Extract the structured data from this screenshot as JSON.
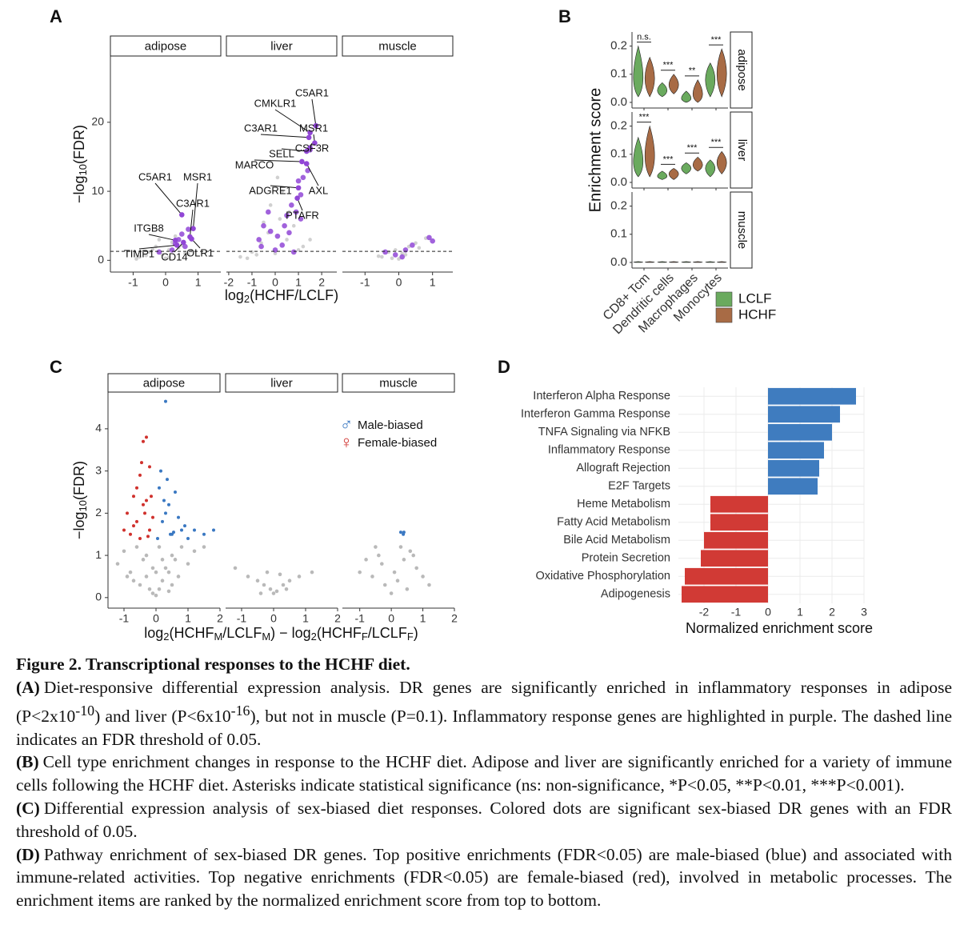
{
  "chart_data": [
    {
      "type": "scatter",
      "panel": "A",
      "xlabel": [
        "log",
        "2",
        "(HCHF/LCLF)"
      ],
      "ylabel": [
        "−log",
        "10",
        "(FDR)"
      ],
      "ylim": [
        -1.7,
        29.6
      ],
      "yticks": [
        0,
        10,
        20
      ],
      "threshold": 1.3,
      "background_color": "#c4c4c4",
      "highlight_color": "#9146d6",
      "facets": [
        {
          "name": "adipose",
          "xlim": [
            -1.7,
            1.7
          ],
          "xticks": [
            -1,
            0,
            1
          ],
          "background": {
            "x": [
              -0.8,
              -0.5,
              -0.3,
              -0.1,
              0,
              0.1,
              0.2,
              0.4,
              0.6,
              -0.6,
              -0.2,
              0.3,
              0.5,
              -0.4,
              0.1,
              0.8,
              -0.9,
              0.7
            ],
            "y": [
              0.5,
              1.2,
              2.0,
              0.8,
              0.3,
              1.5,
              2.6,
              1.8,
              1.0,
              0.7,
              3.0,
              3.5,
              2.2,
              1.6,
              0.4,
              1.4,
              0.2,
              0.9
            ]
          },
          "highlight": {
            "x": [
              0.2,
              0.4,
              0.6,
              0.7,
              0.5,
              -0.2,
              0.3
            ],
            "y": [
              1.5,
              3.0,
              2.0,
              4.5,
              3.8,
              1.2,
              2.4
            ]
          },
          "genes": {
            "labels": [
              "C5AR1",
              "MSR1",
              "C3AR1",
              "ITGB8",
              "TIMP1",
              "CD14",
              "OLR1"
            ],
            "x": [
              0.5,
              0.85,
              0.75,
              0.3,
              0.35,
              0.55,
              0.8
            ],
            "y": [
              6.6,
              4.6,
              3.4,
              2.9,
              2.2,
              2.6,
              3.1
            ]
          }
        },
        {
          "name": "liver",
          "xlim": [
            -2.1,
            2.65
          ],
          "xticks": [
            -2,
            -1,
            0,
            1,
            2
          ],
          "background": {
            "x": [
              -1.5,
              -1,
              -0.6,
              -0.3,
              0,
              0.2,
              0.5,
              0.8,
              1.2,
              -0.8,
              -0.2,
              0.3,
              0.6,
              1.0,
              -1.2,
              1.5,
              0.1,
              -0.5
            ],
            "y": [
              0.5,
              1.2,
              2.5,
              4,
              1,
              6,
              3,
              5,
              2,
              0.8,
              8,
              10,
              7,
              1.5,
              0.3,
              3,
              12,
              5.5
            ]
          },
          "highlight": {
            "x": [
              -0.7,
              -0.5,
              -0.3,
              -0.2,
              0,
              0.1,
              0.3,
              0.4,
              0.5,
              0.6,
              0.7,
              0.9,
              1.0,
              1.1,
              1.2,
              1.4,
              1.5,
              -0.6,
              0.8,
              1.1
            ],
            "y": [
              3,
              5,
              7,
              4.2,
              1.5,
              3.5,
              2.2,
              5,
              6.5,
              4,
              8,
              7,
              11.5,
              9.5,
              12,
              13,
              16,
              2,
              1.2,
              6
            ]
          },
          "genes": {
            "labels": [
              "C5AR1",
              "CMKLR1",
              "C3AR1",
              "MSR1",
              "SELL",
              "CSF3R",
              "MARCO",
              "ADGRE1",
              "AXL",
              "PTAFR"
            ],
            "x": [
              1.75,
              1.5,
              1.45,
              1.7,
              1.35,
              1.5,
              1.15,
              1.0,
              1.35,
              0.95
            ],
            "y": [
              19.5,
              18.5,
              17.8,
              17.0,
              15.8,
              16.3,
              14.3,
              10.5,
              14.0,
              9.0
            ]
          }
        },
        {
          "name": "muscle",
          "xlim": [
            -1.67,
            1.6
          ],
          "xticks": [
            -1,
            0,
            1
          ],
          "background": {
            "x": [
              -0.5,
              -0.3,
              -0.1,
              0,
              0.1,
              0.3,
              0.5,
              -0.2,
              0.2,
              0.6,
              0.8,
              -0.6
            ],
            "y": [
              0.5,
              1.2,
              1.5,
              0.2,
              1.0,
              2.0,
              2.5,
              0.3,
              0.8,
              1.8,
              3.2,
              0.6
            ]
          },
          "highlight": {
            "x": [
              -0.4,
              -0.1,
              0.2,
              0.4,
              0.9,
              1,
              0.1
            ],
            "y": [
              1.2,
              0.8,
              1.5,
              2.2,
              3.3,
              2.8,
              0.5
            ]
          }
        }
      ]
    },
    {
      "type": "violin",
      "panel": "B",
      "ylabel": "Enrichment score",
      "categories": [
        "CD8+ Tcm",
        "Dendritic cells",
        "Macrophages",
        "Monocytes"
      ],
      "series": [
        {
          "name": "LCLF",
          "color": "#6aaa5e"
        },
        {
          "name": "HCHF",
          "color": "#a86b45"
        }
      ],
      "ylim": [
        -0.02,
        0.25
      ],
      "yticks": [
        {
          "value": 0,
          "label": "0.0"
        },
        0.1,
        0.2
      ],
      "facets": [
        {
          "name": "adipose",
          "significance": [
            "n.s.",
            "***",
            "**",
            "***"
          ],
          "series": [
            {
              "values": [
                0.07,
                0.04,
                0.01,
                0.08
              ],
              "min": [
                0.02,
                0.02,
                0.0,
                0.02
              ],
              "max": [
                0.2,
                0.07,
                0.04,
                0.14
              ]
            },
            {
              "values": [
                0.08,
                0.06,
                0.02,
                0.1
              ],
              "min": [
                0.02,
                0.03,
                0.0,
                0.02
              ],
              "max": [
                0.16,
                0.1,
                0.08,
                0.19
              ]
            }
          ]
        },
        {
          "name": "liver",
          "significance": [
            "***",
            "***",
            "***",
            "***"
          ],
          "series": [
            {
              "values": [
                0.06,
                0.02,
                0.05,
                0.05
              ],
              "min": [
                0.02,
                0.01,
                0.03,
                0.02
              ],
              "max": [
                0.16,
                0.04,
                0.07,
                0.08
              ]
            },
            {
              "values": [
                0.08,
                0.03,
                0.06,
                0.07
              ],
              "min": [
                0.02,
                0.01,
                0.04,
                0.03
              ],
              "max": [
                0.2,
                0.05,
                0.09,
                0.11
              ]
            }
          ]
        },
        {
          "name": "muscle",
          "series": [
            {
              "values": [
                0,
                0,
                0,
                0
              ],
              "min": [
                0,
                0,
                0,
                0
              ],
              "max": [
                0.003,
                0.003,
                0.003,
                0.003
              ]
            },
            {
              "values": [
                0,
                0,
                0,
                0
              ],
              "min": [
                0,
                0,
                0,
                0
              ],
              "max": [
                0.003,
                0.003,
                0.003,
                0.003
              ]
            }
          ]
        }
      ]
    },
    {
      "type": "scatter",
      "panel": "C",
      "xlabel": [
        "log",
        "2",
        "(HCHF",
        "M",
        "/LCLF",
        "M",
        ") − log",
        "2",
        "(HCHF",
        "F",
        "/LCLF",
        "F",
        ")"
      ],
      "ylabel": [
        "−log",
        "10",
        "(FDR)"
      ],
      "ylim": [
        -0.25,
        4.87
      ],
      "yticks": [
        0,
        1,
        2,
        3,
        4
      ],
      "background_color": "#a8a8a8",
      "series": [
        {
          "name": "Male-biased",
          "symbol": "♂",
          "color": "#3a78c2"
        },
        {
          "name": "Female-biased",
          "symbol": "♀",
          "color": "#d0312d"
        }
      ],
      "facets": [
        {
          "name": "adipose",
          "xlim": [
            -1.5,
            2.0
          ],
          "xticks": [
            -1,
            0,
            1,
            2
          ],
          "background": {
            "x": [
              -1.2,
              -1,
              -0.8,
              -0.6,
              -0.5,
              -0.4,
              -0.3,
              -0.2,
              -0.1,
              0,
              0.1,
              0.2,
              0.3,
              0.4,
              0.5,
              0.6,
              0.8,
              1.0,
              1.2,
              -0.7,
              -0.3,
              0,
              0.2,
              0.5,
              -0.1,
              0.1,
              0.4,
              -0.9,
              0.7,
              1.5
            ],
            "y": [
              0.8,
              1.1,
              0.6,
              1.2,
              0.3,
              0.9,
              0.5,
              0.2,
              0.1,
              0.05,
              0.2,
              0.4,
              0.7,
              0.6,
              1.0,
              0.9,
              1.2,
              0.8,
              1.1,
              0.4,
              1.0,
              0.6,
              0.9,
              0.3,
              0.7,
              1.2,
              0.15,
              0.5,
              0.5,
              1.2
            ]
          },
          "points": [
            {
              "x": [
                0.05,
                0.1,
                0.2,
                0.3,
                0.4,
                0.5,
                0.6,
                0.7,
                0.8,
                0.9,
                1.0,
                1.2,
                1.5,
                1.8,
                0.3,
                0.35,
                0.55,
                0.25,
                0.45,
                0.15
              ],
              "y": [
                1.4,
                2.6,
                1.8,
                4.65,
                2.2,
                1.5,
                2.5,
                1.9,
                1.6,
                1.7,
                1.4,
                1.6,
                1.5,
                1.6,
                2.0,
                2.8,
                1.55,
                2.3,
                1.5,
                3.0
              ]
            },
            {
              "x": [
                -1.0,
                -0.9,
                -0.8,
                -0.7,
                -0.6,
                -0.5,
                -0.4,
                -0.3,
                -0.2,
                -0.1,
                -0.6,
                -0.4,
                -0.3,
                -0.5,
                -0.2,
                -0.7,
                -0.35,
                -0.15,
                -0.45,
                -0.25
              ],
              "y": [
                1.6,
                2.0,
                1.5,
                2.4,
                1.8,
                2.9,
                2.2,
                3.8,
                1.6,
                1.9,
                2.6,
                3.7,
                2.3,
                1.4,
                3.1,
                1.7,
                2.0,
                2.4,
                3.2,
                1.45
              ]
            }
          ]
        },
        {
          "name": "liver",
          "xlim": [
            -1.5,
            2.0
          ],
          "xticks": [
            -1,
            0,
            1,
            2
          ],
          "background": {
            "x": [
              -1.2,
              -0.8,
              -0.5,
              -0.3,
              -0.1,
              0,
              0.1,
              0.3,
              0.5,
              0.8,
              1.2,
              0.2,
              -0.2,
              0.4,
              -0.4
            ],
            "y": [
              0.7,
              0.5,
              0.4,
              0.3,
              0.2,
              0.1,
              0.15,
              0.3,
              0.4,
              0.5,
              0.6,
              0.55,
              0.6,
              0.2,
              0.1
            ]
          }
        },
        {
          "name": "muscle",
          "xlim": [
            -1.55,
            2.0
          ],
          "xticks": [
            -1,
            0,
            1,
            2
          ],
          "background": {
            "x": [
              -1,
              -0.8,
              -0.6,
              -0.4,
              -0.2,
              0,
              0.2,
              0.4,
              0.6,
              0.8,
              1,
              1.2,
              -0.3,
              0.1,
              0.3,
              -0.5,
              0.5,
              0.7
            ],
            "y": [
              0.6,
              0.9,
              0.5,
              1.0,
              0.3,
              0.1,
              0.4,
              0.9,
              1.1,
              0.7,
              0.5,
              0.3,
              0.8,
              0.6,
              1.2,
              1.2,
              0.2,
              1.0
            ]
          },
          "points": [
            {
              "x": [
                0.3,
                0.4,
                0.38
              ],
              "y": [
                1.55,
                1.55,
                1.5
              ]
            }
          ]
        }
      ]
    },
    {
      "type": "bar",
      "panel": "D",
      "xlabel": "Normalized enrichment score",
      "categories": [
        "Interferon Alpha Response",
        "Interferon Gamma Response",
        "TNFA Signaling via NFKB",
        "Inflammatory Response",
        "Allograft Rejection",
        "E2F Targets",
        "Heme Metabolism",
        "Fatty Acid Metabolism",
        "Bile Acid Metabolism",
        "Protein Secretion",
        "Oxidative Phosphorylation",
        "Adipogenesis"
      ],
      "values": [
        2.75,
        2.25,
        2.0,
        1.75,
        1.6,
        1.55,
        -1.8,
        -1.8,
        -2.0,
        -2.1,
        -2.6,
        -2.7
      ],
      "colors": [
        "#3f7cbf",
        "#3f7cbf",
        "#3f7cbf",
        "#3f7cbf",
        "#3f7cbf",
        "#3f7cbf",
        "#d13a35",
        "#d13a35",
        "#d13a35",
        "#d13a35",
        "#d13a35",
        "#d13a35"
      ],
      "xlim": [
        -2.8,
        3.0
      ],
      "xticks": [
        -2,
        -1,
        0,
        1,
        2,
        3
      ],
      "grid": true
    }
  ],
  "caption": {
    "title": "Figure 2. Transcriptional responses to the HCHF diet.",
    "paragraphs": [
      {
        "label": "(A)",
        "parts": [
          "Diet-responsive differential expression analysis. DR genes are significantly enriched in inflammatory responses in adipose (P<2x10",
          "-10",
          ") and liver (P<6x10",
          "-16",
          "), but not in muscle (P=0.1). Inflammatory response genes are highlighted in purple. The dashed line indicates an FDR threshold of 0.05."
        ]
      },
      {
        "label": "(B)",
        "parts": [
          "Cell type enrichment changes in response to the HCHF diet. Adipose and liver are significantly enriched for a variety of immune cells following the HCHF diet. Asterisks indicate statistical significance (ns: non-significance, *P<0.05, **P<0.01, ***P<0.001)."
        ]
      },
      {
        "label": "(C)",
        "parts": [
          "Differential expression analysis of sex-biased diet responses. Colored dots are significant sex-biased DR genes with an FDR threshold of 0.05."
        ]
      },
      {
        "label": "(D)",
        "parts": [
          "Pathway enrichment of sex-biased DR genes. Top positive enrichments (FDR<0.05) are male-biased (blue) and associated with immune-related activities. Top negative enrichments (FDR<0.05) are female-biased (red), involved in metabolic processes. The enrichment items are ranked by the normalized enrichment score from top to bottom."
        ]
      }
    ]
  }
}
